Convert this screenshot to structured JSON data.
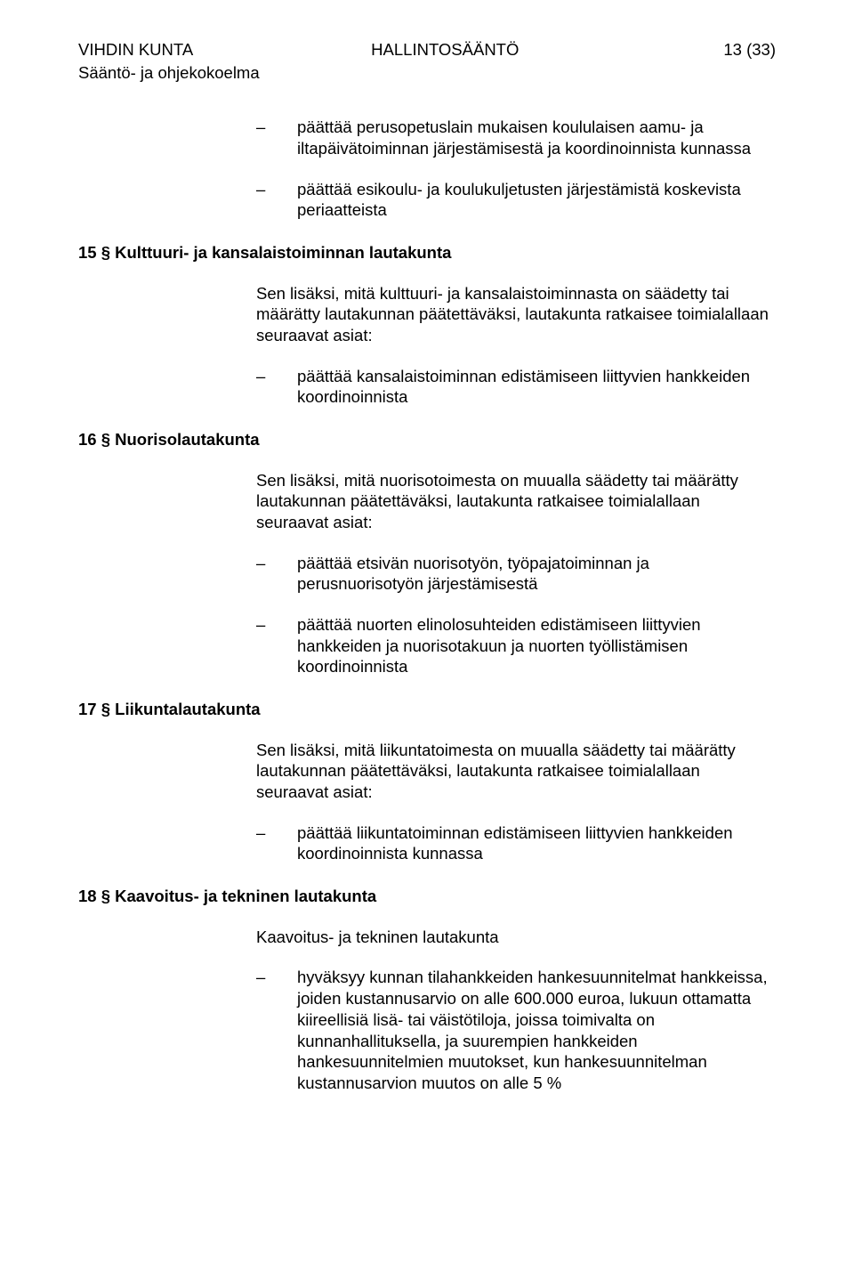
{
  "header": {
    "org": "VIHDIN KUNTA",
    "subline": "Sääntö- ja ohjekokoelma",
    "title": "HALLINTOSÄÄNTÖ",
    "page": "13 (33)"
  },
  "intro_bullets": [
    "päättää perusopetuslain mukaisen koululaisen aamu- ja iltapäivätoiminnan järjestämisestä ja koordinoinnista kunnassa",
    "päättää esikoulu- ja koulukuljetusten järjestämistä koskevista periaatteista"
  ],
  "section15": {
    "heading": "15 § Kulttuuri- ja kansalaistoiminnan lautakunta",
    "para": "Sen lisäksi, mitä kulttuuri- ja kansalaistoiminnasta on säädetty tai määrätty lautakunnan päätettäväksi, lautakunta ratkaisee toimialallaan seuraavat asiat:",
    "bullets": [
      "päättää kansalaistoiminnan edistämiseen liittyvien hankkeiden koordinoinnista"
    ]
  },
  "section16": {
    "heading": "16 § Nuorisolautakunta",
    "para": "Sen lisäksi, mitä nuorisotoimesta on muualla säädetty tai määrätty lautakunnan päätettäväksi, lautakunta ratkaisee toimialallaan seuraavat asiat:",
    "bullets": [
      "päättää etsivän nuorisotyön, työpajatoiminnan ja perusnuorisotyön järjestämisestä",
      "päättää nuorten elinolosuhteiden edistämiseen liittyvien hankkeiden ja nuorisotakuun ja nuorten työllistämisen koordinoinnista"
    ]
  },
  "section17": {
    "heading": "17 § Liikuntalautakunta",
    "para": "Sen lisäksi, mitä liikuntatoimesta on muualla säädetty tai määrätty lautakunnan päätettäväksi, lautakunta ratkaisee toimialallaan seuraavat asiat:",
    "bullets": [
      "päättää liikuntatoiminnan edistämiseen liittyvien hankkeiden koordinoinnista kunnassa"
    ]
  },
  "section18": {
    "heading": "18 § Kaavoitus- ja tekninen lautakunta",
    "para": "Kaavoitus- ja tekninen lautakunta",
    "bullets": [
      "hyväksyy kunnan tilahankkeiden hankesuunnitelmat hankkeissa, joiden kustannusarvio on alle 600.000 euroa, lukuun ottamatta kiireellisiä lisä- tai väistötiloja, joissa toimivalta on kunnanhallituksella, ja suurempien hankkeiden hankesuunnitelmien muutokset, kun hankesuunnitelman kustannusarvion muutos on alle 5 %"
    ]
  }
}
